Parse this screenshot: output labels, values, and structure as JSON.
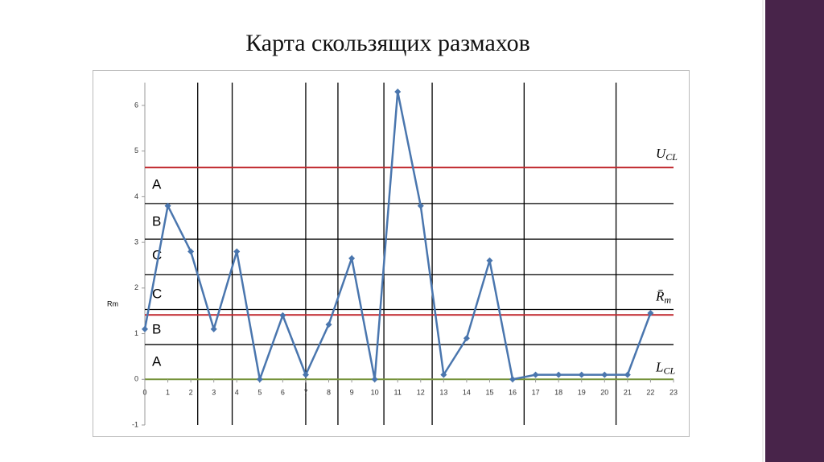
{
  "chart_data": {
    "type": "line",
    "title": "Карта скользящих размахов",
    "ylabel": "Rm",
    "x": [
      0,
      1,
      2,
      3,
      4,
      5,
      6,
      7,
      8,
      9,
      10,
      11,
      12,
      13,
      14,
      15,
      16,
      17,
      18,
      19,
      20,
      21,
      22
    ],
    "series": [
      {
        "color": "#4a76ae",
        "values": [
          1.1,
          3.8,
          2.8,
          1.1,
          2.8,
          0,
          1.4,
          0.1,
          1.2,
          2.65,
          0,
          6.3,
          3.8,
          0.1,
          0.9,
          2.6,
          0,
          0.1,
          0.1,
          0.1,
          0.1,
          0.1,
          1.45
        ]
      }
    ],
    "xlim": [
      0,
      23
    ],
    "xticks": [
      0,
      1,
      2,
      3,
      4,
      5,
      6,
      7,
      8,
      9,
      10,
      11,
      12,
      13,
      14,
      15,
      16,
      17,
      18,
      19,
      20,
      21,
      22,
      23
    ],
    "ylim": [
      -1,
      6.5
    ],
    "yticks": [
      -1,
      0,
      1,
      2,
      3,
      4,
      5,
      6
    ],
    "hlines": [
      {
        "value": 4.64,
        "color": "#c0272d",
        "label": "U",
        "label_sub": "CL"
      },
      {
        "value": 3.85,
        "color": "#000000"
      },
      {
        "value": 3.07,
        "color": "#000000"
      },
      {
        "value": 2.29,
        "color": "#000000"
      },
      {
        "value": 1.53,
        "color": "#000000"
      },
      {
        "value": 1.41,
        "color": "#c0272d",
        "label": "R̄",
        "label_sub": "m"
      },
      {
        "value": 0.76,
        "color": "#000000"
      },
      {
        "value": 0,
        "color": "#77933c",
        "label": "L",
        "label_sub": "CL"
      }
    ],
    "vlines": [
      2.3,
      3.8,
      7,
      8.4,
      10.4,
      12.5,
      16.5,
      20.5
    ],
    "zone_labels": [
      "A",
      "B",
      "C",
      "C",
      "B",
      "A"
    ]
  }
}
